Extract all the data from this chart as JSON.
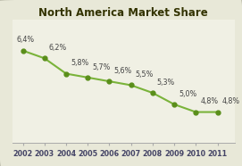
{
  "title": "North America Market Share",
  "years": [
    2002,
    2003,
    2004,
    2005,
    2006,
    2007,
    2008,
    2009,
    2010,
    2011
  ],
  "values": [
    6.4,
    6.2,
    5.8,
    5.7,
    5.6,
    5.5,
    5.3,
    5.0,
    4.8,
    4.8
  ],
  "labels": [
    "6,4%",
    "6,2%",
    "5,8%",
    "5,7%",
    "5,6%",
    "5,5%",
    "5,3%",
    "5,0%",
    "4,8%",
    "4,8%"
  ],
  "line_color": "#7ab33a",
  "marker_color": "#5a8e1a",
  "bg_color": "#e8e8d8",
  "plot_bg_color": "#f0f0e4",
  "border_color": "#bbbbaa",
  "ylim": [
    4.0,
    7.2
  ],
  "title_fontsize": 8.5,
  "label_fontsize": 5.8,
  "tick_fontsize": 5.8
}
